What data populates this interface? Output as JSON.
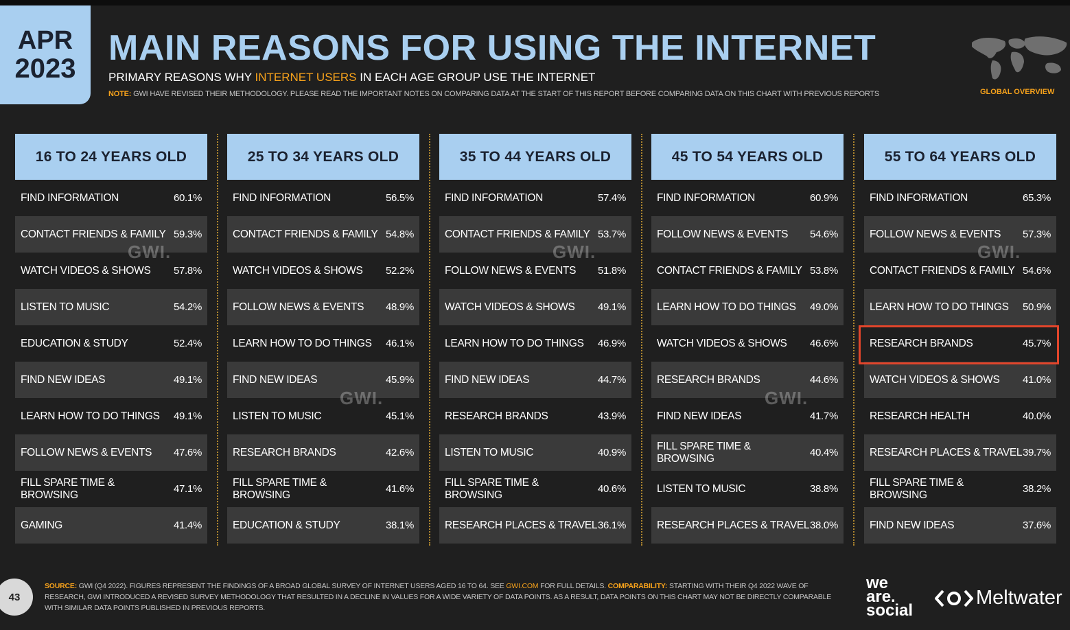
{
  "date": {
    "month": "APR",
    "year": "2023"
  },
  "header": {
    "title": "MAIN REASONS FOR USING THE INTERNET",
    "subtitle_pre": "PRIMARY REASONS WHY ",
    "subtitle_highlight": "INTERNET USERS",
    "subtitle_post": " IN EACH AGE GROUP USE THE INTERNET",
    "note_label": "NOTE:",
    "note_text": " GWI HAVE REVISED THEIR METHODOLOGY. PLEASE READ THE IMPORTANT NOTES ON COMPARING DATA AT THE START OF THIS REPORT BEFORE COMPARING DATA ON THIS CHART WITH PREVIOUS REPORTS",
    "section_label": "GLOBAL OVERVIEW"
  },
  "watermark": "GWI.",
  "columns": [
    {
      "header": "16 TO 24 YEARS OLD",
      "rows": [
        {
          "label": "FIND INFORMATION",
          "value": "60.1%"
        },
        {
          "label": "CONTACT FRIENDS & FAMILY",
          "value": "59.3%"
        },
        {
          "label": "WATCH VIDEOS & SHOWS",
          "value": "57.8%"
        },
        {
          "label": "LISTEN TO MUSIC",
          "value": "54.2%"
        },
        {
          "label": "EDUCATION & STUDY",
          "value": "52.4%"
        },
        {
          "label": "FIND NEW IDEAS",
          "value": "49.1%"
        },
        {
          "label": "LEARN HOW TO DO THINGS",
          "value": "49.1%"
        },
        {
          "label": "FOLLOW NEWS & EVENTS",
          "value": "47.6%"
        },
        {
          "label": "FILL SPARE TIME & BROWSING",
          "value": "47.1%"
        },
        {
          "label": "GAMING",
          "value": "41.4%"
        }
      ]
    },
    {
      "header": "25 TO 34 YEARS OLD",
      "rows": [
        {
          "label": "FIND INFORMATION",
          "value": "56.5%"
        },
        {
          "label": "CONTACT FRIENDS & FAMILY",
          "value": "54.8%"
        },
        {
          "label": "WATCH VIDEOS & SHOWS",
          "value": "52.2%"
        },
        {
          "label": "FOLLOW NEWS & EVENTS",
          "value": "48.9%"
        },
        {
          "label": "LEARN HOW TO DO THINGS",
          "value": "46.1%"
        },
        {
          "label": "FIND NEW IDEAS",
          "value": "45.9%"
        },
        {
          "label": "LISTEN TO MUSIC",
          "value": "45.1%"
        },
        {
          "label": "RESEARCH BRANDS",
          "value": "42.6%"
        },
        {
          "label": "FILL SPARE TIME & BROWSING",
          "value": "41.6%"
        },
        {
          "label": "EDUCATION & STUDY",
          "value": "38.1%"
        }
      ]
    },
    {
      "header": "35 TO 44 YEARS OLD",
      "rows": [
        {
          "label": "FIND INFORMATION",
          "value": "57.4%"
        },
        {
          "label": "CONTACT FRIENDS & FAMILY",
          "value": "53.7%"
        },
        {
          "label": "FOLLOW NEWS & EVENTS",
          "value": "51.8%"
        },
        {
          "label": "WATCH VIDEOS & SHOWS",
          "value": "49.1%"
        },
        {
          "label": "LEARN HOW TO DO THINGS",
          "value": "46.9%"
        },
        {
          "label": "FIND NEW IDEAS",
          "value": "44.7%"
        },
        {
          "label": "RESEARCH BRANDS",
          "value": "43.9%"
        },
        {
          "label": "LISTEN TO MUSIC",
          "value": "40.9%"
        },
        {
          "label": "FILL SPARE TIME & BROWSING",
          "value": "40.6%"
        },
        {
          "label": "RESEARCH PLACES & TRAVEL",
          "value": "36.1%"
        }
      ]
    },
    {
      "header": "45 TO 54 YEARS OLD",
      "rows": [
        {
          "label": "FIND INFORMATION",
          "value": "60.9%"
        },
        {
          "label": "FOLLOW NEWS & EVENTS",
          "value": "54.6%"
        },
        {
          "label": "CONTACT FRIENDS & FAMILY",
          "value": "53.8%"
        },
        {
          "label": "LEARN HOW TO DO THINGS",
          "value": "49.0%"
        },
        {
          "label": "WATCH VIDEOS & SHOWS",
          "value": "46.6%"
        },
        {
          "label": "RESEARCH BRANDS",
          "value": "44.6%"
        },
        {
          "label": "FIND NEW IDEAS",
          "value": "41.7%"
        },
        {
          "label": "FILL SPARE TIME & BROWSING",
          "value": "40.4%"
        },
        {
          "label": "LISTEN TO MUSIC",
          "value": "38.8%"
        },
        {
          "label": "RESEARCH PLACES & TRAVEL",
          "value": "38.0%"
        }
      ]
    },
    {
      "header": "55 TO 64 YEARS OLD",
      "rows": [
        {
          "label": "FIND INFORMATION",
          "value": "65.3%"
        },
        {
          "label": "FOLLOW NEWS & EVENTS",
          "value": "57.3%"
        },
        {
          "label": "CONTACT FRIENDS & FAMILY",
          "value": "54.6%"
        },
        {
          "label": "LEARN HOW TO DO THINGS",
          "value": "50.9%"
        },
        {
          "label": "RESEARCH BRANDS",
          "value": "45.7%"
        },
        {
          "label": "WATCH VIDEOS & SHOWS",
          "value": "41.0%"
        },
        {
          "label": "RESEARCH HEALTH",
          "value": "40.0%"
        },
        {
          "label": "RESEARCH PLACES & TRAVEL",
          "value": "39.7%"
        },
        {
          "label": "FILL SPARE TIME & BROWSING",
          "value": "38.2%"
        },
        {
          "label": "FIND NEW IDEAS",
          "value": "37.6%"
        }
      ]
    }
  ],
  "footer": {
    "page_number": "43",
    "source_label": "SOURCE:",
    "source_text_1": " GWI (Q4 2022). FIGURES REPRESENT THE FINDINGS OF A BROAD GLOBAL SURVEY OF INTERNET USERS AGED 16 TO 64. SEE ",
    "source_link": "GWI.COM",
    "source_text_2": " FOR FULL DETAILS. ",
    "comparability_label": "COMPARABILITY:",
    "comparability_text": " STARTING WITH THEIR Q4 2022 WAVE OF RESEARCH, GWI INTRODUCED A REVISED SURVEY METHODOLOGY THAT RESULTED IN A DECLINE IN VALUES FOR A WIDE VARIETY OF DATA POINTS. AS A RESULT, DATA POINTS ON THIS CHART MAY NOT BE DIRECTLY COMPARABLE WITH SIMILAR DATA POINTS PUBLISHED IN PREVIOUS REPORTS.",
    "brand_we": "we",
    "brand_are": "are.",
    "brand_social": "social",
    "brand_meltwater": "Meltwater"
  },
  "colors": {
    "accent_blue": "#a9cff0",
    "accent_orange": "#f7a21b",
    "highlight_red": "#e2452b"
  }
}
